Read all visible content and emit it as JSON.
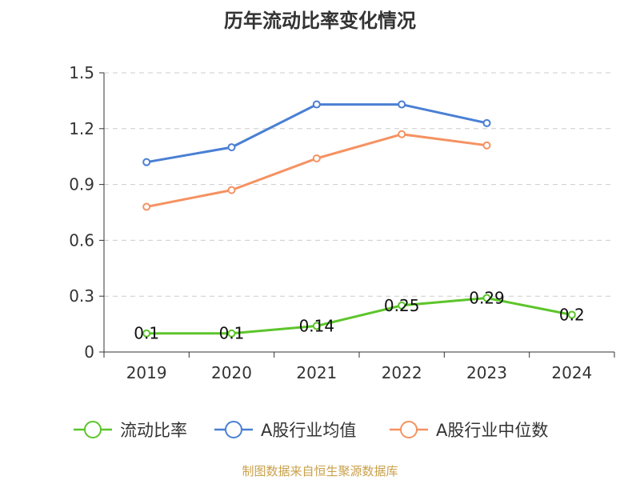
{
  "chart_data": {
    "type": "line",
    "title": "历年流动比率变化情况",
    "categories": [
      "2019",
      "2020",
      "2021",
      "2022",
      "2023",
      "2024"
    ],
    "ylim": [
      0,
      1.5
    ],
    "yticks": [
      "0",
      "0.3",
      "0.6",
      "0.9",
      "1.2",
      "1.5"
    ],
    "grid": true,
    "legend_position": "bottom",
    "series": [
      {
        "name": "流动比率",
        "color": "#5cc52a",
        "values": [
          0.1,
          0.1,
          0.14,
          0.25,
          0.29,
          0.2
        ],
        "labels": [
          "0.1",
          "0.1",
          "0.14",
          "0.25",
          "0.29",
          "0.2"
        ]
      },
      {
        "name": "A股行业均值",
        "color": "#4a7fd4",
        "values": [
          1.02,
          1.1,
          1.33,
          1.33,
          1.23,
          null
        ]
      },
      {
        "name": "A股行业中位数",
        "color": "#f59262",
        "values": [
          0.78,
          0.87,
          1.04,
          1.17,
          1.11,
          null
        ]
      }
    ]
  },
  "source": "制图数据来自恒生聚源数据库"
}
